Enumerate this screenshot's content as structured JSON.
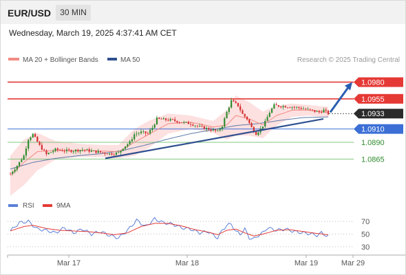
{
  "header": {
    "symbol": "EUR/USD",
    "timeframe": "30 MIN",
    "datetime": "Wednesday, March 19, 2025 4:37:41 AM CET"
  },
  "legend": {
    "items": [
      {
        "label": "MA 20 + Bollinger Bands",
        "color": "#f28b82"
      },
      {
        "label": "MA 50",
        "color": "#2f4f8f"
      }
    ],
    "credit": "Research © 2025 Trading Central"
  },
  "chart_data": [
    {
      "type": "line",
      "description_type": "candlestick price chart",
      "x_ticks": [
        "Mar 17",
        "Mar 18",
        "Mar 19",
        "Mar 29"
      ],
      "ylim": [
        1.0815,
        1.1
      ],
      "current_price": "1.0933",
      "levels": [
        {
          "value": 1.098,
          "label": "1.0980",
          "kind": "resistance"
        },
        {
          "value": 1.0955,
          "label": "1.0955",
          "kind": "resistance"
        },
        {
          "value": 1.091,
          "label": "1.0910",
          "kind": "pivot"
        },
        {
          "value": 1.089,
          "label": "1.0890",
          "kind": "support"
        },
        {
          "value": 1.0865,
          "label": "1.0865",
          "kind": "support"
        }
      ],
      "trendline": {
        "start": 1.0866,
        "end": 1.0925
      },
      "arrow": {
        "from": 1.0935,
        "to": 1.098
      },
      "series": [
        {
          "name": "price",
          "anchors": [
            [
              0,
              1.0843
            ],
            [
              3,
              1.0855
            ],
            [
              6,
              1.087
            ],
            [
              8,
              1.0895
            ],
            [
              10,
              1.0902
            ],
            [
              13,
              1.0885
            ],
            [
              16,
              1.0872
            ],
            [
              20,
              1.0879
            ],
            [
              26,
              1.0877
            ],
            [
              32,
              1.0879
            ],
            [
              38,
              1.0876
            ],
            [
              44,
              1.0873
            ],
            [
              48,
              1.0874
            ],
            [
              50,
              1.0882
            ],
            [
              53,
              1.089
            ],
            [
              55,
              1.0902
            ],
            [
              58,
              1.0905
            ],
            [
              61,
              1.0903
            ],
            [
              63,
              1.0912
            ],
            [
              65,
              1.0925
            ],
            [
              68,
              1.0924
            ],
            [
              72,
              1.0923
            ],
            [
              76,
              1.092
            ],
            [
              80,
              1.0918
            ],
            [
              84,
              1.0913
            ],
            [
              88,
              1.091
            ],
            [
              92,
              1.0906
            ],
            [
              94,
              1.0915
            ],
            [
              96,
              1.0935
            ],
            [
              98,
              1.0952
            ],
            [
              101,
              1.0945
            ],
            [
              103,
              1.0932
            ],
            [
              105,
              1.0925
            ],
            [
              107,
              1.0912
            ],
            [
              109,
              1.0903
            ],
            [
              111,
              1.091
            ],
            [
              113,
              1.092
            ],
            [
              115,
              1.0935
            ],
            [
              117,
              1.0945
            ],
            [
              121,
              1.0944
            ],
            [
              125,
              1.0943
            ],
            [
              129,
              1.0941
            ],
            [
              133,
              1.0938
            ],
            [
              137,
              1.0935
            ],
            [
              139,
              1.0938
            ],
            [
              141,
              1.0933
            ]
          ]
        },
        {
          "name": "MA 20",
          "anchors": [
            [
              0,
              1.084
            ],
            [
              6,
              1.086
            ],
            [
              12,
              1.0876
            ],
            [
              20,
              1.0878
            ],
            [
              30,
              1.0878
            ],
            [
              40,
              1.0877
            ],
            [
              48,
              1.0876
            ],
            [
              55,
              1.089
            ],
            [
              62,
              1.0903
            ],
            [
              70,
              1.0918
            ],
            [
              80,
              1.092
            ],
            [
              90,
              1.0913
            ],
            [
              96,
              1.0916
            ],
            [
              100,
              1.093
            ],
            [
              106,
              1.0925
            ],
            [
              112,
              1.0916
            ],
            [
              118,
              1.093
            ],
            [
              125,
              1.0938
            ],
            [
              132,
              1.0938
            ],
            [
              141,
              1.0935
            ]
          ]
        },
        {
          "name": "MA 50",
          "anchors": [
            [
              0,
              1.085
            ],
            [
              10,
              1.086
            ],
            [
              20,
              1.0866
            ],
            [
              30,
              1.087
            ],
            [
              40,
              1.0873
            ],
            [
              50,
              1.0878
            ],
            [
              60,
              1.0886
            ],
            [
              70,
              1.0895
            ],
            [
              80,
              1.0903
            ],
            [
              90,
              1.0909
            ],
            [
              100,
              1.0915
            ],
            [
              110,
              1.0918
            ],
            [
              120,
              1.0923
            ],
            [
              130,
              1.0927
            ],
            [
              141,
              1.0928
            ]
          ]
        },
        {
          "name": "Bollinger width",
          "anchors": [
            [
              0,
              0.003
            ],
            [
              6,
              0.0034
            ],
            [
              12,
              0.0028
            ],
            [
              20,
              0.0014
            ],
            [
              30,
              0.001
            ],
            [
              40,
              0.0009
            ],
            [
              48,
              0.001
            ],
            [
              55,
              0.002
            ],
            [
              62,
              0.002
            ],
            [
              70,
              0.0015
            ],
            [
              80,
              0.001
            ],
            [
              90,
              0.0009
            ],
            [
              96,
              0.0022
            ],
            [
              100,
              0.003
            ],
            [
              106,
              0.0025
            ],
            [
              112,
              0.002
            ],
            [
              118,
              0.0015
            ],
            [
              125,
              0.001
            ],
            [
              132,
              0.0008
            ],
            [
              141,
              0.0008
            ]
          ]
        }
      ]
    },
    {
      "type": "line",
      "title": "",
      "ylim": [
        20,
        80
      ],
      "y_ticks": [
        70,
        50,
        30
      ],
      "series": [
        {
          "name": "RSI",
          "color": "#5b7fd6",
          "anchors": [
            [
              0,
              55
            ],
            [
              4,
              68
            ],
            [
              8,
              70
            ],
            [
              12,
              58
            ],
            [
              16,
              56
            ],
            [
              20,
              52
            ],
            [
              24,
              60
            ],
            [
              28,
              52
            ],
            [
              32,
              58
            ],
            [
              36,
              50
            ],
            [
              40,
              54
            ],
            [
              44,
              48
            ],
            [
              48,
              44
            ],
            [
              52,
              56
            ],
            [
              56,
              72
            ],
            [
              60,
              62
            ],
            [
              64,
              74
            ],
            [
              68,
              68
            ],
            [
              72,
              66
            ],
            [
              76,
              60
            ],
            [
              80,
              58
            ],
            [
              84,
              52
            ],
            [
              88,
              54
            ],
            [
              90,
              48
            ],
            [
              92,
              44
            ],
            [
              94,
              56
            ],
            [
              96,
              64
            ],
            [
              98,
              66
            ],
            [
              100,
              54
            ],
            [
              102,
              50
            ],
            [
              104,
              58
            ],
            [
              106,
              44
            ],
            [
              108,
              42
            ],
            [
              110,
              48
            ],
            [
              112,
              52
            ],
            [
              114,
              60
            ],
            [
              116,
              58
            ],
            [
              118,
              56
            ],
            [
              122,
              58
            ],
            [
              126,
              54
            ],
            [
              130,
              52
            ],
            [
              134,
              50
            ],
            [
              136,
              48
            ],
            [
              138,
              52
            ],
            [
              141,
              46
            ]
          ]
        },
        {
          "name": "9MA",
          "color": "#e53935",
          "anchors": [
            [
              0,
              55
            ],
            [
              6,
              62
            ],
            [
              10,
              64
            ],
            [
              16,
              59
            ],
            [
              22,
              56
            ],
            [
              28,
              55
            ],
            [
              34,
              54
            ],
            [
              40,
              52
            ],
            [
              46,
              49
            ],
            [
              52,
              52
            ],
            [
              58,
              62
            ],
            [
              64,
              67
            ],
            [
              70,
              67
            ],
            [
              76,
              63
            ],
            [
              82,
              57
            ],
            [
              88,
              53
            ],
            [
              92,
              49
            ],
            [
              96,
              56
            ],
            [
              100,
              58
            ],
            [
              104,
              52
            ],
            [
              108,
              47
            ],
            [
              112,
              50
            ],
            [
              118,
              56
            ],
            [
              124,
              57
            ],
            [
              130,
              54
            ],
            [
              136,
              51
            ],
            [
              141,
              49
            ]
          ]
        }
      ]
    }
  ]
}
